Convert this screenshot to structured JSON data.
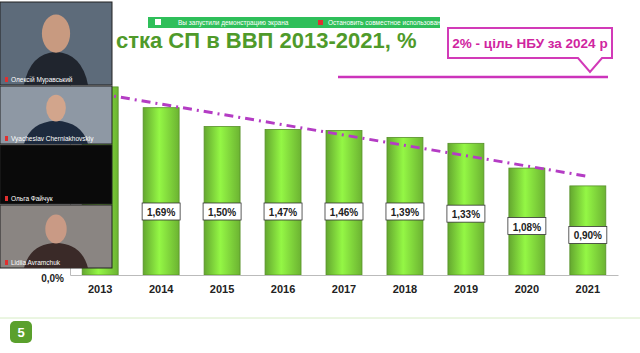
{
  "chart_data": {
    "type": "bar",
    "title": "стка СП в ВВП 2013-2021, %",
    "categories": [
      "2013",
      "2014",
      "2015",
      "2016",
      "2017",
      "2018",
      "2019",
      "2020",
      "2021"
    ],
    "values": [
      1.9,
      1.69,
      1.5,
      1.47,
      1.46,
      1.39,
      1.33,
      1.08,
      0.9
    ],
    "value_labels": [
      null,
      "1,69%",
      "1,50%",
      "1,47%",
      "1,46%",
      "1,39%",
      "1,33%",
      "1,08%",
      "0,90%"
    ],
    "data_labels": true,
    "color": "#7ccf3a",
    "ylim": [
      0,
      2.0
    ],
    "yticks": [
      {
        "value": 0,
        "label": "0,0%"
      }
    ],
    "target": {
      "value": 2,
      "label": "2% - ціль НБУ за 2024 р"
    }
  },
  "participants": [
    "Олексій Муравський",
    "Vyacheslav Cherniakhovskiy",
    "Ольга Файчук",
    "Lidiia Avramchuk"
  ],
  "screen_share": {
    "notice": "Вы запустили демонстрацию экрана",
    "stop": "Остановить совместное использование"
  },
  "slide_number": 5
}
